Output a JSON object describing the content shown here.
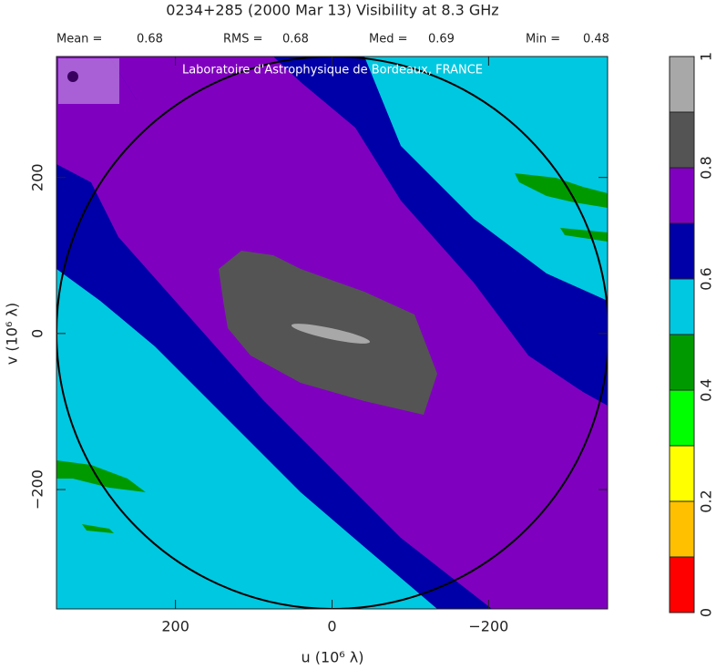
{
  "chart_data": {
    "type": "contour",
    "title": "0234+285  (2000 Mar 13)   Visibility at  8.3 GHz",
    "stats": [
      {
        "label": "Mean =",
        "value": 0.68
      },
      {
        "label": "RMS =",
        "value": 0.68
      },
      {
        "label": "Med =",
        "value": 0.69
      },
      {
        "label": "Min =",
        "value": 0.48
      }
    ],
    "annotation": "Laboratoire d'Astrophysique de Bordeaux, FRANCE",
    "xlabel": "u  (10⁶ λ)",
    "ylabel": "v  (10⁶ λ)",
    "xlim": [
      352,
      -352
    ],
    "ylim": [
      -353,
      355
    ],
    "xticks": [
      200,
      0,
      {
        "value": -200,
        "label": "−200"
      }
    ],
    "yticks": [
      {
        "value": -200,
        "label": "−200"
      },
      0,
      200
    ],
    "colorbar": {
      "levels": [
        0,
        0.1,
        0.2,
        0.3,
        0.4,
        0.5,
        0.6,
        0.7,
        0.8,
        0.9,
        1
      ],
      "colors": [
        "#ff0000",
        "#ffc000",
        "#ffff00",
        "#00ff00",
        "#009a00",
        "#00c8e0",
        "#0000a8",
        "#8000c0",
        "#545454",
        "#a8a8a8"
      ],
      "ticks": [
        0,
        0.2,
        0.4,
        0.6,
        0.8,
        1
      ]
    }
  }
}
